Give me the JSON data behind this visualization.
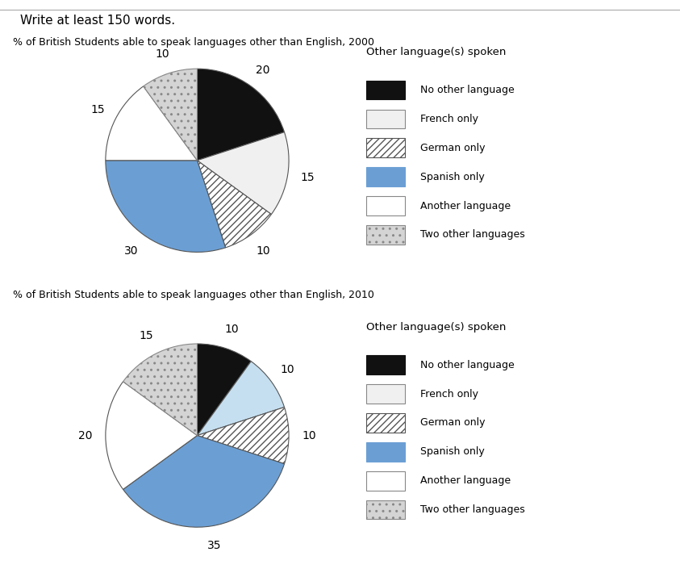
{
  "title_2000": "% of British Students able to speak languages other than English, 2000",
  "title_2010": "% of British Students able to speak languages other than English, 2010",
  "header": "Write at least 150 words.",
  "legend_title": "Other language(s) spoken",
  "legend_labels": [
    "No other language",
    "French only",
    "German only",
    "Spanish only",
    "Another language",
    "Two other languages"
  ],
  "values_2000": [
    20,
    15,
    10,
    30,
    15,
    10
  ],
  "values_2010": [
    10,
    10,
    10,
    35,
    20,
    15
  ],
  "seg_colors_2000": [
    "#111111",
    "#f0f0f0",
    "#ffffff",
    "#6b9fd4",
    "#ffffff",
    "#d4d4d4"
  ],
  "seg_colors_2010": [
    "#111111",
    "#c5dff0",
    "#ffffff",
    "#6b9fd4",
    "#ffffff",
    "#d4d4d4"
  ],
  "seg_hatches": [
    null,
    null,
    "////",
    null,
    null,
    "...."
  ],
  "background": "#ffffff"
}
